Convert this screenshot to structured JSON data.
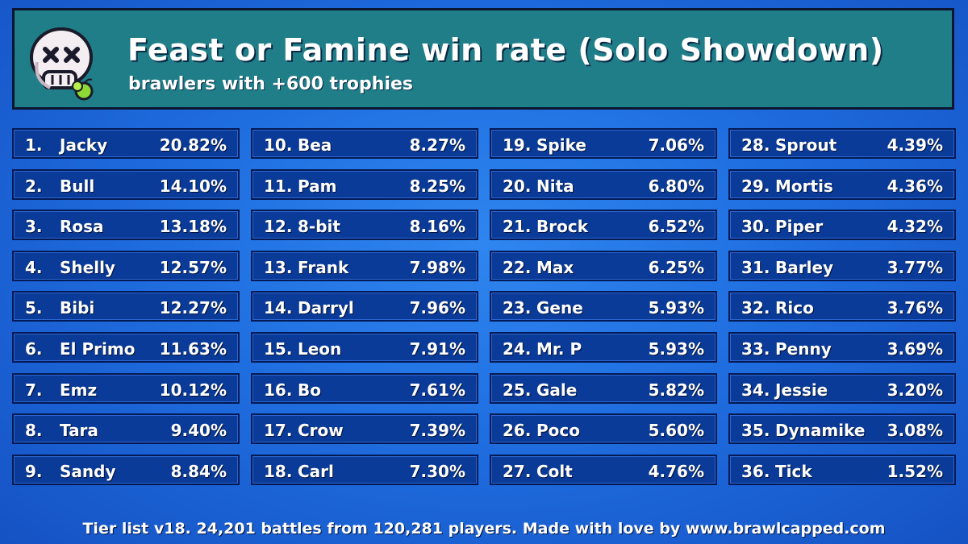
{
  "header": {
    "title": "Feast or Famine win rate (Solo Showdown)",
    "subtitle": "brawlers with +600 trophies",
    "logo_icon": "skull-with-fruit-icon"
  },
  "footer": {
    "text": "Tier list v18. 24,201 battles from 120,281 players. Made with love by www.brawlcapped.com"
  },
  "colors": {
    "background": "#1f6ee0",
    "header_bg": "#1f7e88",
    "cell_bg": "#0b3b98",
    "text": "#ffffff"
  },
  "chart_data": {
    "type": "table",
    "title": "Feast or Famine win rate (Solo Showdown)",
    "subtitle": "brawlers with +600 trophies",
    "columns": 4,
    "rows": [
      {
        "rank": "1.",
        "name": "Jacky",
        "rate": "20.82%"
      },
      {
        "rank": "2.",
        "name": "Bull",
        "rate": "14.10%"
      },
      {
        "rank": "3.",
        "name": "Rosa",
        "rate": "13.18%"
      },
      {
        "rank": "4.",
        "name": "Shelly",
        "rate": "12.57%"
      },
      {
        "rank": "5.",
        "name": "Bibi",
        "rate": "12.27%"
      },
      {
        "rank": "6.",
        "name": "El Primo",
        "rate": "11.63%"
      },
      {
        "rank": "7.",
        "name": "Emz",
        "rate": "10.12%"
      },
      {
        "rank": "8.",
        "name": "Tara",
        "rate": "9.40%"
      },
      {
        "rank": "9.",
        "name": "Sandy",
        "rate": "8.84%"
      },
      {
        "rank": "10.",
        "name": "Bea",
        "rate": "8.27%"
      },
      {
        "rank": "11.",
        "name": "Pam",
        "rate": "8.25%"
      },
      {
        "rank": "12.",
        "name": "8-bit",
        "rate": "8.16%"
      },
      {
        "rank": "13.",
        "name": "Frank",
        "rate": "7.98%"
      },
      {
        "rank": "14.",
        "name": "Darryl",
        "rate": "7.96%"
      },
      {
        "rank": "15.",
        "name": "Leon",
        "rate": "7.91%"
      },
      {
        "rank": "16.",
        "name": "Bo",
        "rate": "7.61%"
      },
      {
        "rank": "17.",
        "name": "Crow",
        "rate": "7.39%"
      },
      {
        "rank": "18.",
        "name": "Carl",
        "rate": "7.30%"
      },
      {
        "rank": "19.",
        "name": "Spike",
        "rate": "7.06%"
      },
      {
        "rank": "20.",
        "name": "Nita",
        "rate": "6.80%"
      },
      {
        "rank": "21.",
        "name": "Brock",
        "rate": "6.52%"
      },
      {
        "rank": "22.",
        "name": "Max",
        "rate": "6.25%"
      },
      {
        "rank": "23.",
        "name": "Gene",
        "rate": "5.93%"
      },
      {
        "rank": "24.",
        "name": "Mr. P",
        "rate": "5.93%"
      },
      {
        "rank": "25.",
        "name": "Gale",
        "rate": "5.82%"
      },
      {
        "rank": "26.",
        "name": "Poco",
        "rate": "5.60%"
      },
      {
        "rank": "27.",
        "name": "Colt",
        "rate": "4.76%"
      },
      {
        "rank": "28.",
        "name": "Sprout",
        "rate": "4.39%"
      },
      {
        "rank": "29.",
        "name": "Mortis",
        "rate": "4.36%"
      },
      {
        "rank": "30.",
        "name": "Piper",
        "rate": "4.32%"
      },
      {
        "rank": "31.",
        "name": "Barley",
        "rate": "3.77%"
      },
      {
        "rank": "32.",
        "name": "Rico",
        "rate": "3.76%"
      },
      {
        "rank": "33.",
        "name": "Penny",
        "rate": "3.69%"
      },
      {
        "rank": "34.",
        "name": "Jessie",
        "rate": "3.20%"
      },
      {
        "rank": "35.",
        "name": "Dynamike",
        "rate": "3.08%"
      },
      {
        "rank": "36.",
        "name": "Tick",
        "rate": "1.52%"
      }
    ]
  }
}
